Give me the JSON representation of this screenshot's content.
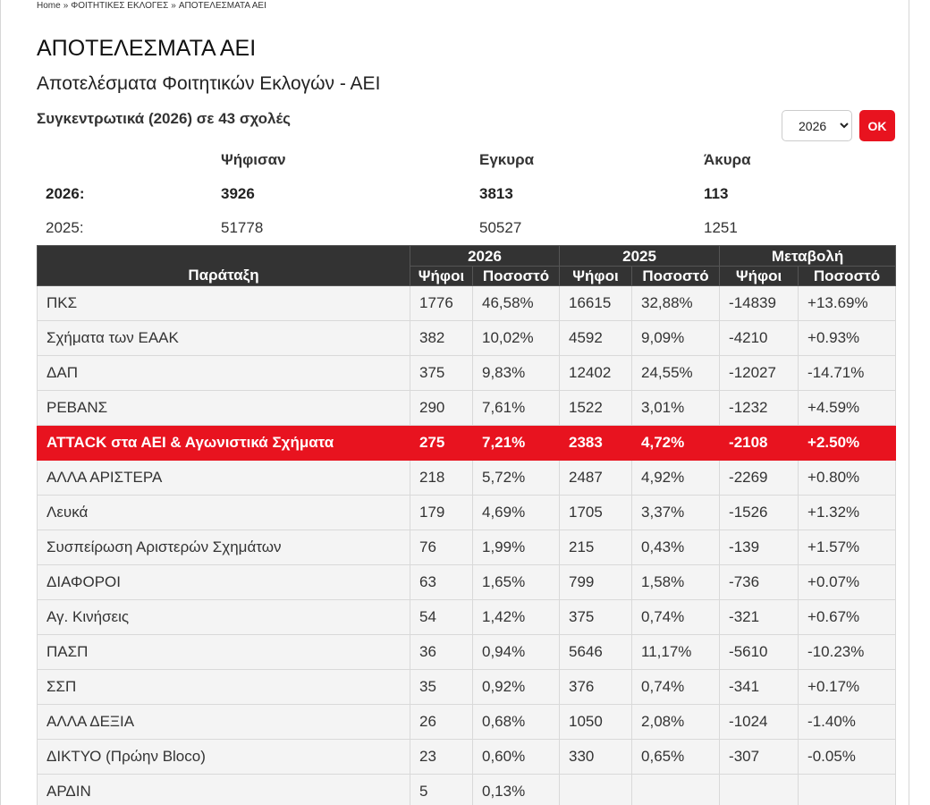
{
  "breadcrumb": {
    "home": "Home",
    "section": "ΦΟΙΤΗΤΙΚΕΣ ΕΚΛΟΓΕΣ",
    "current": "ΑΠΟΤΕΛΕΣΜΑΤΑ ΑΕΙ",
    "separator": "»"
  },
  "page": {
    "title": "ΑΠΟΤΕΛΕΣΜΑΤΑ ΑΕΙ",
    "subtitle": "Αποτελέσματα Φοιτητικών Εκλογών - ΑΕΙ",
    "summary_heading": "Συγκεντρωτικά (2026) σε 43 σχολές"
  },
  "year_select": {
    "value": "2026",
    "options": [
      "2026"
    ]
  },
  "ok_button": {
    "label": "OK"
  },
  "summary": {
    "headers": {
      "voted": "Ψήφισαν",
      "valid": "Εγκυρα",
      "invalid": "Άκυρα"
    },
    "rows": [
      {
        "label": "2026:",
        "voted": "3926",
        "valid": "3813",
        "invalid": "113"
      },
      {
        "label": "2025:",
        "voted": "51778",
        "valid": "50527",
        "invalid": "1251"
      }
    ]
  },
  "results": {
    "header": {
      "party": "Παράταξη",
      "year_current": "2026",
      "year_previous": "2025",
      "change": "Μεταβολή",
      "votes": "Ψήφοι",
      "percent": "Ποσοστό"
    },
    "rows": [
      {
        "party": "ΠΚΣ",
        "v26": "1776",
        "p26": "46,58%",
        "v25": "16615",
        "p25": "32,88%",
        "dv": "-14839",
        "dp": "+13.69%"
      },
      {
        "party": "Σχήματα των ΕΑΑΚ",
        "v26": "382",
        "p26": "10,02%",
        "v25": "4592",
        "p25": "9,09%",
        "dv": "-4210",
        "dp": "+0.93%"
      },
      {
        "party": "ΔΑΠ",
        "v26": "375",
        "p26": "9,83%",
        "v25": "12402",
        "p25": "24,55%",
        "dv": "-12027",
        "dp": "-14.71%"
      },
      {
        "party": "ΡΕΒΑΝΣ",
        "v26": "290",
        "p26": "7,61%",
        "v25": "1522",
        "p25": "3,01%",
        "dv": "-1232",
        "dp": "+4.59%"
      },
      {
        "party": "ATTACK στα ΑΕΙ & Αγωνιστικά Σχήματα",
        "v26": "275",
        "p26": "7,21%",
        "v25": "2383",
        "p25": "4,72%",
        "dv": "-2108",
        "dp": "+2.50%"
      },
      {
        "party": "ΑΛΛΑ ΑΡΙΣΤΕΡΑ",
        "v26": "218",
        "p26": "5,72%",
        "v25": "2487",
        "p25": "4,92%",
        "dv": "-2269",
        "dp": "+0.80%"
      },
      {
        "party": "Λευκά",
        "v26": "179",
        "p26": "4,69%",
        "v25": "1705",
        "p25": "3,37%",
        "dv": "-1526",
        "dp": "+1.32%"
      },
      {
        "party": "Συσπείρωση Αριστερών Σχημάτων",
        "v26": "76",
        "p26": "1,99%",
        "v25": "215",
        "p25": "0,43%",
        "dv": "-139",
        "dp": "+1.57%"
      },
      {
        "party": "ΔΙΑΦΟΡΟΙ",
        "v26": "63",
        "p26": "1,65%",
        "v25": "799",
        "p25": "1,58%",
        "dv": "-736",
        "dp": "+0.07%"
      },
      {
        "party": "Αγ. Κινήσεις",
        "v26": "54",
        "p26": "1,42%",
        "v25": "375",
        "p25": "0,74%",
        "dv": "-321",
        "dp": "+0.67%"
      },
      {
        "party": "ΠΑΣΠ",
        "v26": "36",
        "p26": "0,94%",
        "v25": "5646",
        "p25": "11,17%",
        "dv": "-5610",
        "dp": "-10.23%"
      },
      {
        "party": "ΣΣΠ",
        "v26": "35",
        "p26": "0,92%",
        "v25": "376",
        "p25": "0,74%",
        "dv": "-341",
        "dp": "+0.17%"
      },
      {
        "party": "ΑΛΛΑ ΔΕΞΙΑ",
        "v26": "26",
        "p26": "0,68%",
        "v25": "1050",
        "p25": "2,08%",
        "dv": "-1024",
        "dp": "-1.40%"
      },
      {
        "party": "ΔΙΚΤΥΟ (Πρώην Bloco)",
        "v26": "23",
        "p26": "0,60%",
        "v25": "330",
        "p25": "0,65%",
        "dv": "-307",
        "dp": "-0.05%"
      },
      {
        "party": "ΑΡΔΙΝ",
        "v26": "5",
        "p26": "0,13%",
        "v25": "",
        "p25": "",
        "dv": "",
        "dp": ""
      }
    ]
  },
  "colors": {
    "accent": "#e8131f",
    "header_bg": "#333333",
    "row_bg": "#f4f4f4"
  }
}
